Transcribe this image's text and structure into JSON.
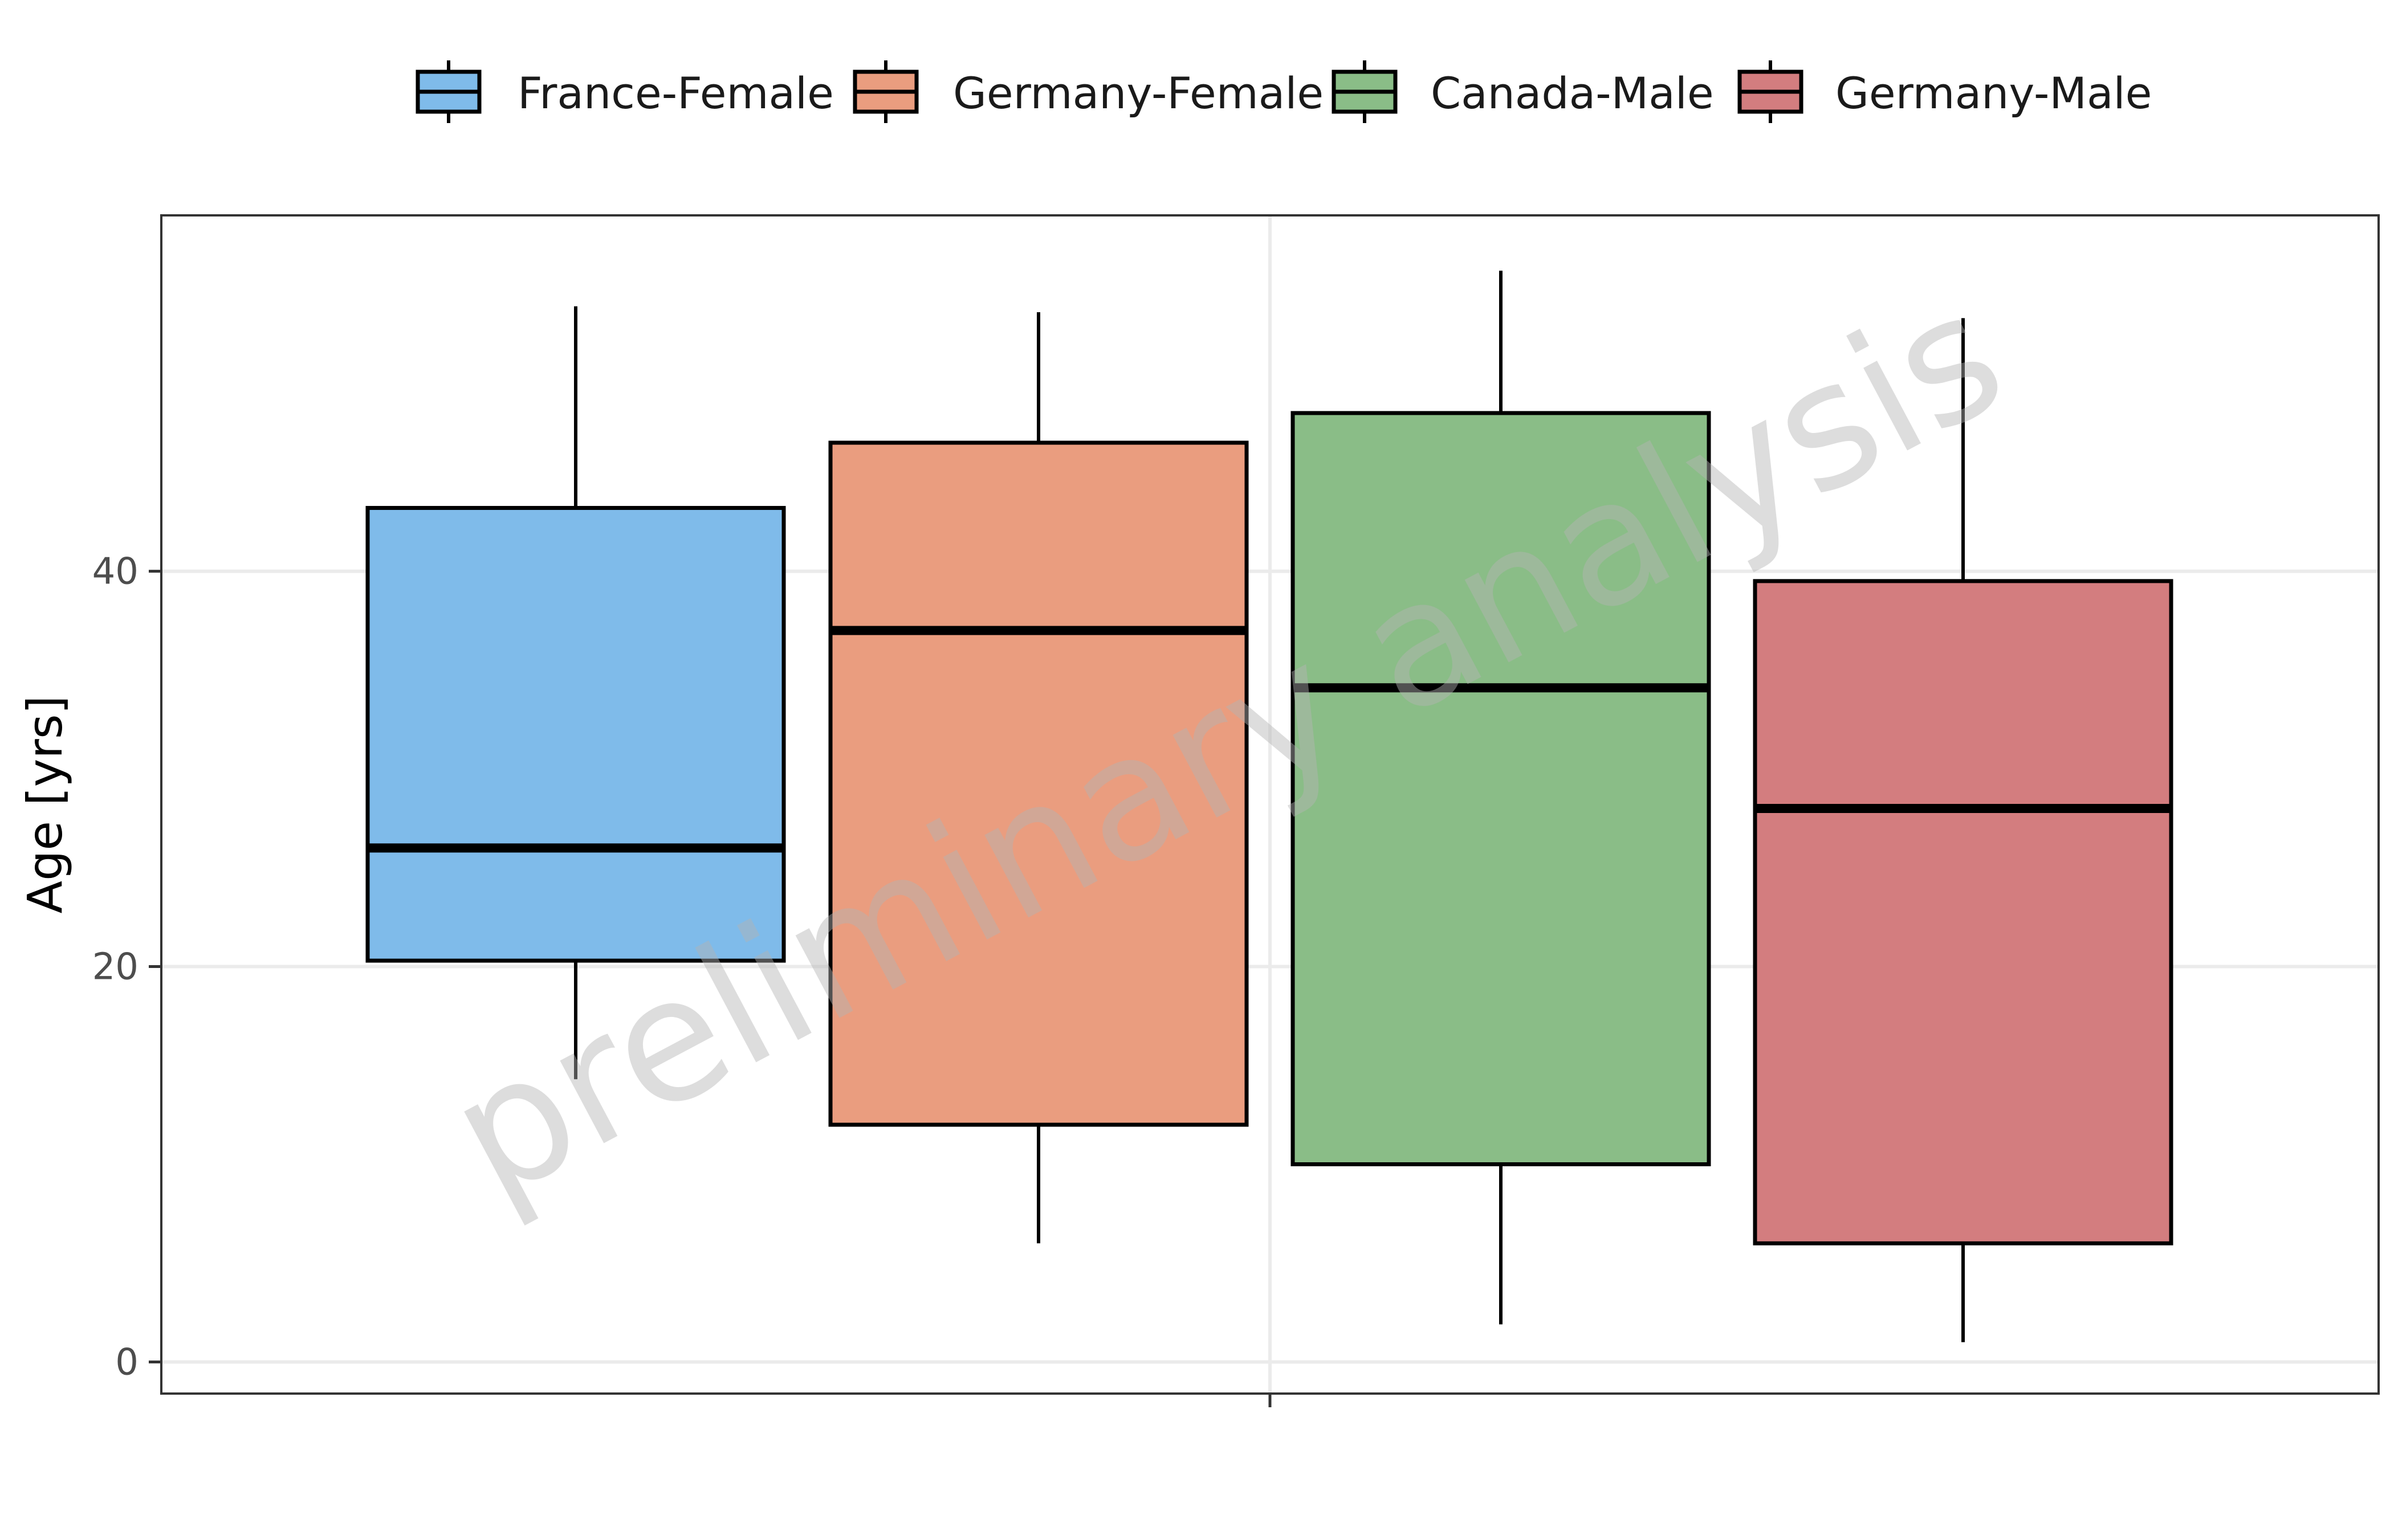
{
  "chart_data": {
    "type": "boxplot",
    "title": "",
    "xlabel": "",
    "ylabel": "Age [yrs]",
    "ylim": [
      -1.6,
      58
    ],
    "yticks": [
      0,
      20,
      40
    ],
    "grid": true,
    "legend_position": "top",
    "watermark": "preliminary analysis",
    "series": [
      {
        "name": "France-Female",
        "color": "#7fbbea",
        "whisker_low": 14.3,
        "q1": 20.3,
        "median": 26.0,
        "q3": 43.2,
        "whisker_high": 53.4
      },
      {
        "name": "Germany-Female",
        "color": "#ea9d7f",
        "whisker_low": 6.0,
        "q1": 12.0,
        "median": 37.0,
        "q3": 46.5,
        "whisker_high": 53.1
      },
      {
        "name": "Canada-Male",
        "color": "#8abd87",
        "whisker_low": 1.9,
        "q1": 10.0,
        "median": 34.1,
        "q3": 48.0,
        "whisker_high": 55.2
      },
      {
        "name": "Germany-Male",
        "color": "#d37d7f",
        "whisker_low": 1.0,
        "q1": 6.0,
        "median": 28.0,
        "q3": 39.5,
        "whisker_high": 52.8
      }
    ]
  }
}
